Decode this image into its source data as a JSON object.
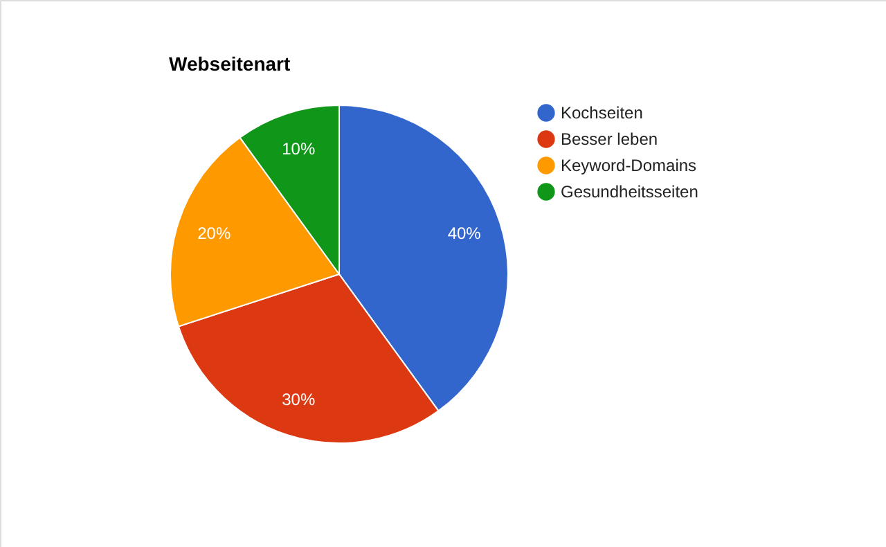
{
  "chart_data": {
    "type": "pie",
    "title": "Webseitenart",
    "categories": [
      "Kochseiten",
      "Besser leben",
      "Keyword-Domains",
      "Gesundheitsseiten"
    ],
    "values": [
      40,
      30,
      20,
      10
    ],
    "colors": [
      "#3366cc",
      "#dc3912",
      "#ff9900",
      "#109618"
    ],
    "value_labels": [
      "40%",
      "30%",
      "20%",
      "10%"
    ],
    "legend": "right"
  }
}
